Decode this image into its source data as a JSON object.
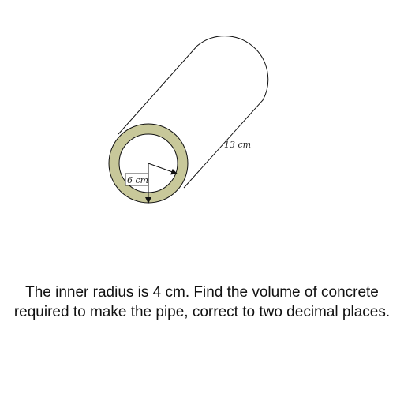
{
  "diagram": {
    "length_label": "13 cm",
    "outer_radius_label": "6 cm",
    "colors": {
      "outline": "#111111",
      "ring_fill": "#c8c89a",
      "background": "#ffffff"
    }
  },
  "question": {
    "text": "The inner radius is 4 cm. Find the volume of concrete required to make the pipe, correct to two decimal places."
  }
}
